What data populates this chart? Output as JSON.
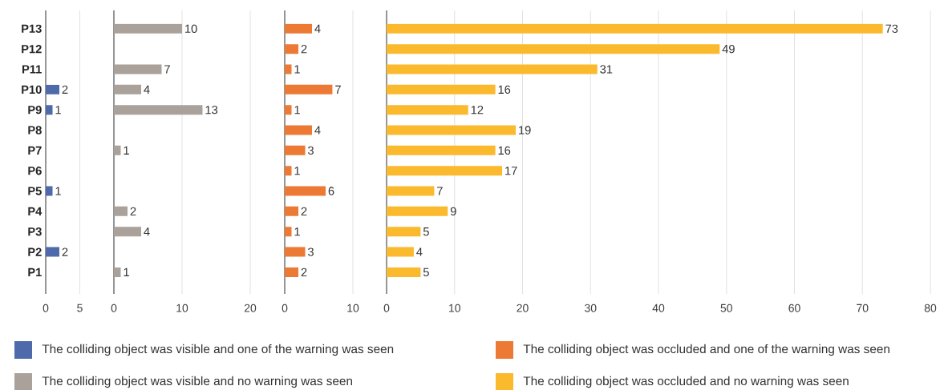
{
  "chart_data": [
    {
      "type": "bar",
      "orientation": "horizontal",
      "categories": [
        "P13",
        "P12",
        "P11",
        "P10",
        "P9",
        "P8",
        "P7",
        "P6",
        "P5",
        "P4",
        "P3",
        "P2",
        "P1"
      ],
      "series": [
        {
          "name": "The colliding object was visible and one of the warning was seen",
          "color": "#4e6aab",
          "values": [
            null,
            null,
            null,
            2,
            1,
            null,
            null,
            null,
            1,
            null,
            null,
            2,
            null
          ]
        }
      ],
      "xlim": [
        0,
        5
      ],
      "xticks": [
        0,
        5
      ],
      "grid": "x",
      "legend": "bottom",
      "data_labels": true
    },
    {
      "type": "bar",
      "orientation": "horizontal",
      "categories": [
        null,
        null,
        null,
        null,
        null,
        null,
        null,
        null,
        null,
        null,
        null,
        null,
        null
      ],
      "series": [
        {
          "name": "The colliding object was visible and no warning was seen",
          "color": "#a9a19a",
          "values": [
            10,
            null,
            7,
            4,
            13,
            null,
            1,
            null,
            null,
            2,
            4,
            null,
            1
          ]
        }
      ],
      "xlim": [
        0,
        20
      ],
      "xticks": [
        0,
        10,
        20
      ],
      "grid": "x",
      "legend": "bottom",
      "data_labels": true,
      "tick_labels": "x"
    },
    {
      "type": "bar",
      "orientation": "horizontal",
      "categories": [
        null,
        null,
        null,
        null,
        null,
        null,
        null,
        null,
        null,
        null,
        null,
        null,
        null
      ],
      "series": [
        {
          "name": "The colliding object was occluded and one of the warning was seen",
          "color": "#ec7a35",
          "values": [
            4,
            2,
            1,
            7,
            1,
            4,
            3,
            1,
            6,
            2,
            1,
            3,
            2
          ]
        }
      ],
      "xlim": [
        0,
        10
      ],
      "xticks": [
        0,
        10
      ],
      "grid": "x",
      "legend": "bottom",
      "data_labels": true,
      "tick_labels": "x"
    },
    {
      "type": "bar",
      "orientation": "horizontal",
      "categories": [
        null,
        null,
        null,
        null,
        null,
        null,
        null,
        null,
        null,
        null,
        null,
        null,
        null
      ],
      "series": [
        {
          "name": "The colliding object was occluded and no warning was seen",
          "color": "#fbb92e",
          "values": [
            73,
            49,
            31,
            16,
            12,
            19,
            16,
            17,
            7,
            9,
            5,
            4,
            5
          ]
        }
      ],
      "xlim": [
        0,
        80
      ],
      "xticks": [
        0,
        10,
        20,
        30,
        40,
        50,
        60,
        70,
        80
      ],
      "grid": "x",
      "legend": "bottom",
      "data_labels": true,
      "tick_labels": "x"
    }
  ]
}
